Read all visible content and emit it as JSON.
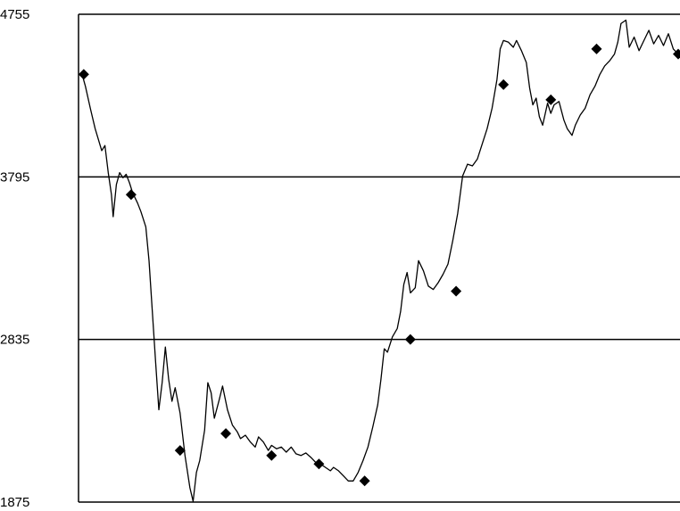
{
  "chart_data": {
    "type": "line",
    "title": "",
    "xlabel": "",
    "ylabel": "",
    "ylim": [
      1875,
      4755
    ],
    "yticks": [
      1875,
      2835,
      3795,
      4755
    ],
    "ytick_labels": [
      "1875",
      "2835",
      "3795",
      "4755"
    ],
    "grid": "horizontal",
    "legend": "none",
    "line_color": "#000000",
    "marker": "diamond",
    "x_count": 240,
    "series": [
      {
        "line_points": [
          [
            0,
            4400
          ],
          [
            2,
            4330
          ],
          [
            5,
            4200
          ],
          [
            8,
            4080
          ],
          [
            12,
            3950
          ],
          [
            14,
            3980
          ],
          [
            16,
            3820
          ],
          [
            18,
            3690
          ],
          [
            19,
            3560
          ],
          [
            21,
            3750
          ],
          [
            23,
            3820
          ],
          [
            25,
            3790
          ],
          [
            27,
            3810
          ],
          [
            29,
            3760
          ],
          [
            31,
            3700
          ],
          [
            34,
            3640
          ],
          [
            36,
            3590
          ],
          [
            39,
            3500
          ],
          [
            41,
            3300
          ],
          [
            43,
            3000
          ],
          [
            45,
            2700
          ],
          [
            47,
            2420
          ],
          [
            49,
            2580
          ],
          [
            51,
            2790
          ],
          [
            53,
            2600
          ],
          [
            55,
            2470
          ],
          [
            57,
            2550
          ],
          [
            60,
            2400
          ],
          [
            63,
            2150
          ],
          [
            66,
            1960
          ],
          [
            68,
            1880
          ],
          [
            70,
            2050
          ],
          [
            72,
            2120
          ],
          [
            75,
            2300
          ],
          [
            77,
            2580
          ],
          [
            79,
            2520
          ],
          [
            81,
            2370
          ],
          [
            84,
            2480
          ],
          [
            86,
            2560
          ],
          [
            89,
            2420
          ],
          [
            92,
            2330
          ],
          [
            95,
            2290
          ],
          [
            97,
            2250
          ],
          [
            100,
            2270
          ],
          [
            103,
            2230
          ],
          [
            106,
            2200
          ],
          [
            108,
            2260
          ],
          [
            111,
            2230
          ],
          [
            114,
            2180
          ],
          [
            116,
            2210
          ],
          [
            119,
            2190
          ],
          [
            122,
            2200
          ],
          [
            125,
            2170
          ],
          [
            128,
            2200
          ],
          [
            131,
            2160
          ],
          [
            134,
            2150
          ],
          [
            137,
            2165
          ],
          [
            140,
            2140
          ],
          [
            143,
            2110
          ],
          [
            146,
            2100
          ],
          [
            149,
            2080
          ],
          [
            152,
            2060
          ],
          [
            154,
            2080
          ],
          [
            157,
            2060
          ],
          [
            160,
            2030
          ],
          [
            163,
            2000
          ],
          [
            166,
            2000
          ],
          [
            169,
            2050
          ],
          [
            172,
            2120
          ],
          [
            175,
            2200
          ],
          [
            178,
            2320
          ],
          [
            181,
            2450
          ],
          [
            183,
            2600
          ],
          [
            185,
            2780
          ],
          [
            187,
            2760
          ],
          [
            190,
            2850
          ],
          [
            193,
            2900
          ],
          [
            195,
            3000
          ],
          [
            197,
            3160
          ],
          [
            199,
            3230
          ],
          [
            201,
            3110
          ],
          [
            204,
            3140
          ],
          [
            206,
            3300
          ],
          [
            209,
            3240
          ],
          [
            212,
            3150
          ],
          [
            215,
            3130
          ],
          [
            218,
            3170
          ],
          [
            221,
            3220
          ],
          [
            224,
            3280
          ],
          [
            227,
            3420
          ],
          [
            230,
            3580
          ],
          [
            233,
            3800
          ],
          [
            236,
            3870
          ],
          [
            239,
            3860
          ],
          [
            242,
            3900
          ],
          [
            245,
            3990
          ],
          [
            248,
            4080
          ],
          [
            251,
            4200
          ],
          [
            254,
            4370
          ],
          [
            256,
            4550
          ],
          [
            258,
            4600
          ],
          [
            261,
            4590
          ],
          [
            264,
            4560
          ],
          [
            266,
            4600
          ],
          [
            269,
            4540
          ],
          [
            272,
            4470
          ],
          [
            274,
            4320
          ],
          [
            276,
            4220
          ],
          [
            278,
            4260
          ],
          [
            280,
            4150
          ],
          [
            282,
            4100
          ],
          [
            285,
            4230
          ],
          [
            287,
            4170
          ],
          [
            289,
            4220
          ],
          [
            292,
            4240
          ],
          [
            295,
            4130
          ],
          [
            297,
            4080
          ],
          [
            300,
            4040
          ],
          [
            302,
            4100
          ],
          [
            305,
            4160
          ],
          [
            308,
            4200
          ],
          [
            311,
            4280
          ],
          [
            314,
            4330
          ],
          [
            317,
            4400
          ],
          [
            320,
            4450
          ],
          [
            323,
            4480
          ],
          [
            326,
            4520
          ],
          [
            328,
            4590
          ],
          [
            330,
            4700
          ],
          [
            333,
            4720
          ],
          [
            335,
            4560
          ],
          [
            338,
            4620
          ],
          [
            341,
            4540
          ],
          [
            344,
            4600
          ],
          [
            347,
            4660
          ],
          [
            350,
            4580
          ],
          [
            353,
            4630
          ],
          [
            356,
            4570
          ],
          [
            359,
            4640
          ],
          [
            362,
            4550
          ],
          [
            365,
            4520
          ]
        ],
        "marker_points": [
          [
            1,
            4400
          ],
          [
            30,
            3690
          ],
          [
            60,
            2180
          ],
          [
            88,
            2280
          ],
          [
            116,
            2150
          ],
          [
            145,
            2100
          ],
          [
            173,
            2000
          ],
          [
            201,
            2835
          ],
          [
            229,
            3120
          ],
          [
            258,
            4340
          ],
          [
            287,
            4250
          ],
          [
            315,
            4550
          ],
          [
            365,
            4520
          ]
        ]
      }
    ],
    "x_range": [
      0,
      365
    ]
  }
}
